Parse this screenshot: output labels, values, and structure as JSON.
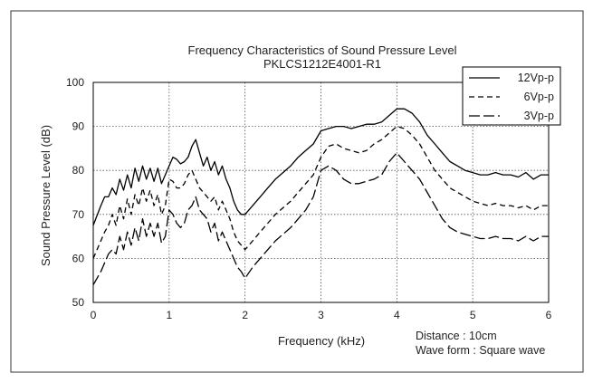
{
  "chart_data": {
    "type": "line",
    "title": "Frequency Characteristics of Sound Pressure Level",
    "subtitle": "PKLCS1212E4001-R1",
    "xlabel": "Frequency (kHz)",
    "ylabel": "Sound Pressure Level (dB)",
    "xlim": [
      0,
      6
    ],
    "ylim": [
      50,
      100
    ],
    "x_ticks": [
      "0",
      "1",
      "2",
      "3",
      "4",
      "5",
      "6"
    ],
    "y_ticks": [
      "50",
      "60",
      "70",
      "80",
      "90",
      "100"
    ],
    "grid": true,
    "legend_position": "top-right",
    "notes": [
      "Distance : 10cm",
      "Wave form : Square wave"
    ],
    "series": [
      {
        "name": "12Vp-p",
        "style": "solid",
        "x": [
          0,
          0.1,
          0.15,
          0.2,
          0.25,
          0.3,
          0.35,
          0.4,
          0.45,
          0.5,
          0.55,
          0.6,
          0.65,
          0.7,
          0.75,
          0.8,
          0.85,
          0.9,
          0.95,
          1.0,
          1.05,
          1.1,
          1.15,
          1.2,
          1.25,
          1.3,
          1.35,
          1.4,
          1.45,
          1.5,
          1.55,
          1.6,
          1.65,
          1.7,
          1.75,
          1.8,
          1.85,
          1.9,
          1.95,
          2.0,
          2.1,
          2.2,
          2.3,
          2.4,
          2.5,
          2.6,
          2.7,
          2.8,
          2.9,
          3.0,
          3.1,
          3.2,
          3.3,
          3.4,
          3.5,
          3.6,
          3.7,
          3.8,
          3.9,
          4.0,
          4.1,
          4.2,
          4.3,
          4.4,
          4.5,
          4.6,
          4.7,
          4.8,
          4.9,
          5.0,
          5.1,
          5.2,
          5.3,
          5.4,
          5.5,
          5.6,
          5.7,
          5.8,
          5.9,
          6.0
        ],
        "values": [
          67.5,
          72,
          74,
          74,
          76,
          74.5,
          78,
          75.5,
          79,
          76,
          80.5,
          77.5,
          81,
          78,
          80.5,
          77.5,
          80.5,
          77,
          79,
          81,
          83,
          82.5,
          81.5,
          82,
          83,
          85.5,
          87,
          84,
          81,
          83,
          80,
          82,
          79,
          81,
          78,
          76,
          73,
          71,
          70,
          70,
          72,
          74,
          76,
          78,
          79.5,
          81,
          83,
          84.5,
          86,
          89,
          89.5,
          90,
          90,
          89.5,
          90,
          90.5,
          90.5,
          91,
          92.5,
          94,
          94,
          93,
          91,
          88,
          86,
          84,
          82,
          81,
          80,
          79.5,
          79,
          79,
          79.5,
          79,
          79,
          78.5,
          79.5,
          78,
          79,
          79
        ]
      },
      {
        "name": "6Vp-p",
        "style": "dashed",
        "x": [
          0,
          0.1,
          0.15,
          0.2,
          0.25,
          0.3,
          0.35,
          0.4,
          0.45,
          0.5,
          0.55,
          0.6,
          0.65,
          0.7,
          0.75,
          0.8,
          0.85,
          0.9,
          0.95,
          1.0,
          1.05,
          1.1,
          1.15,
          1.2,
          1.25,
          1.3,
          1.35,
          1.4,
          1.45,
          1.5,
          1.55,
          1.6,
          1.65,
          1.7,
          1.75,
          1.8,
          1.85,
          1.9,
          1.95,
          2.0,
          2.1,
          2.2,
          2.3,
          2.4,
          2.5,
          2.6,
          2.7,
          2.8,
          2.9,
          3.0,
          3.1,
          3.2,
          3.3,
          3.4,
          3.5,
          3.6,
          3.7,
          3.8,
          3.9,
          4.0,
          4.1,
          4.2,
          4.3,
          4.4,
          4.5,
          4.6,
          4.7,
          4.8,
          4.9,
          5.0,
          5.1,
          5.2,
          5.3,
          5.4,
          5.5,
          5.6,
          5.7,
          5.8,
          5.9,
          6.0
        ],
        "values": [
          60,
          64,
          66,
          67.5,
          70,
          67.5,
          72,
          69,
          73.5,
          70,
          74.5,
          72,
          76,
          73,
          75.5,
          72,
          74.5,
          70,
          72,
          78,
          77.5,
          76,
          76,
          77,
          79,
          80,
          78,
          76,
          75,
          74,
          73,
          74,
          71,
          73,
          71,
          69,
          66,
          64,
          63,
          62,
          64,
          66,
          68,
          70,
          71.5,
          73,
          75,
          77,
          79,
          83,
          85.5,
          86,
          85,
          84.5,
          84,
          84.5,
          86,
          87,
          88.5,
          90,
          89.5,
          88,
          86,
          83,
          80,
          78,
          76,
          75,
          74,
          73,
          72.5,
          72,
          72.5,
          72,
          72,
          71.5,
          72,
          71,
          72,
          72
        ]
      },
      {
        "name": "3Vp-p",
        "style": "long-dash",
        "x": [
          0,
          0.1,
          0.15,
          0.2,
          0.25,
          0.3,
          0.35,
          0.4,
          0.45,
          0.5,
          0.55,
          0.6,
          0.65,
          0.7,
          0.75,
          0.8,
          0.85,
          0.9,
          0.95,
          1.0,
          1.05,
          1.1,
          1.15,
          1.2,
          1.25,
          1.3,
          1.35,
          1.4,
          1.45,
          1.5,
          1.55,
          1.6,
          1.65,
          1.7,
          1.75,
          1.8,
          1.85,
          1.9,
          1.95,
          2.0,
          2.1,
          2.2,
          2.3,
          2.4,
          2.5,
          2.6,
          2.7,
          2.8,
          2.9,
          3.0,
          3.1,
          3.2,
          3.3,
          3.4,
          3.5,
          3.6,
          3.7,
          3.8,
          3.9,
          4.0,
          4.1,
          4.2,
          4.3,
          4.4,
          4.5,
          4.6,
          4.7,
          4.8,
          4.9,
          5.0,
          5.1,
          5.2,
          5.3,
          5.4,
          5.5,
          5.6,
          5.7,
          5.8,
          5.9,
          6.0
        ],
        "values": [
          54,
          57,
          59,
          61,
          62,
          61,
          65,
          62,
          66,
          63,
          67,
          64,
          69,
          65,
          68,
          65,
          68,
          63.5,
          65,
          71,
          70,
          68,
          67,
          68,
          71,
          72,
          74,
          71,
          70,
          69,
          66,
          68,
          64,
          66,
          64,
          62,
          60,
          58,
          57,
          55.5,
          58,
          60,
          62,
          64,
          65.5,
          67,
          69,
          71,
          74,
          80,
          81,
          80,
          78,
          77,
          77,
          77.5,
          78,
          79,
          82,
          84,
          82,
          80,
          78,
          75,
          72,
          69,
          67,
          66,
          65.5,
          65,
          64.5,
          64.5,
          65,
          64.5,
          64.5,
          64,
          65,
          64,
          65,
          65
        ]
      }
    ]
  }
}
